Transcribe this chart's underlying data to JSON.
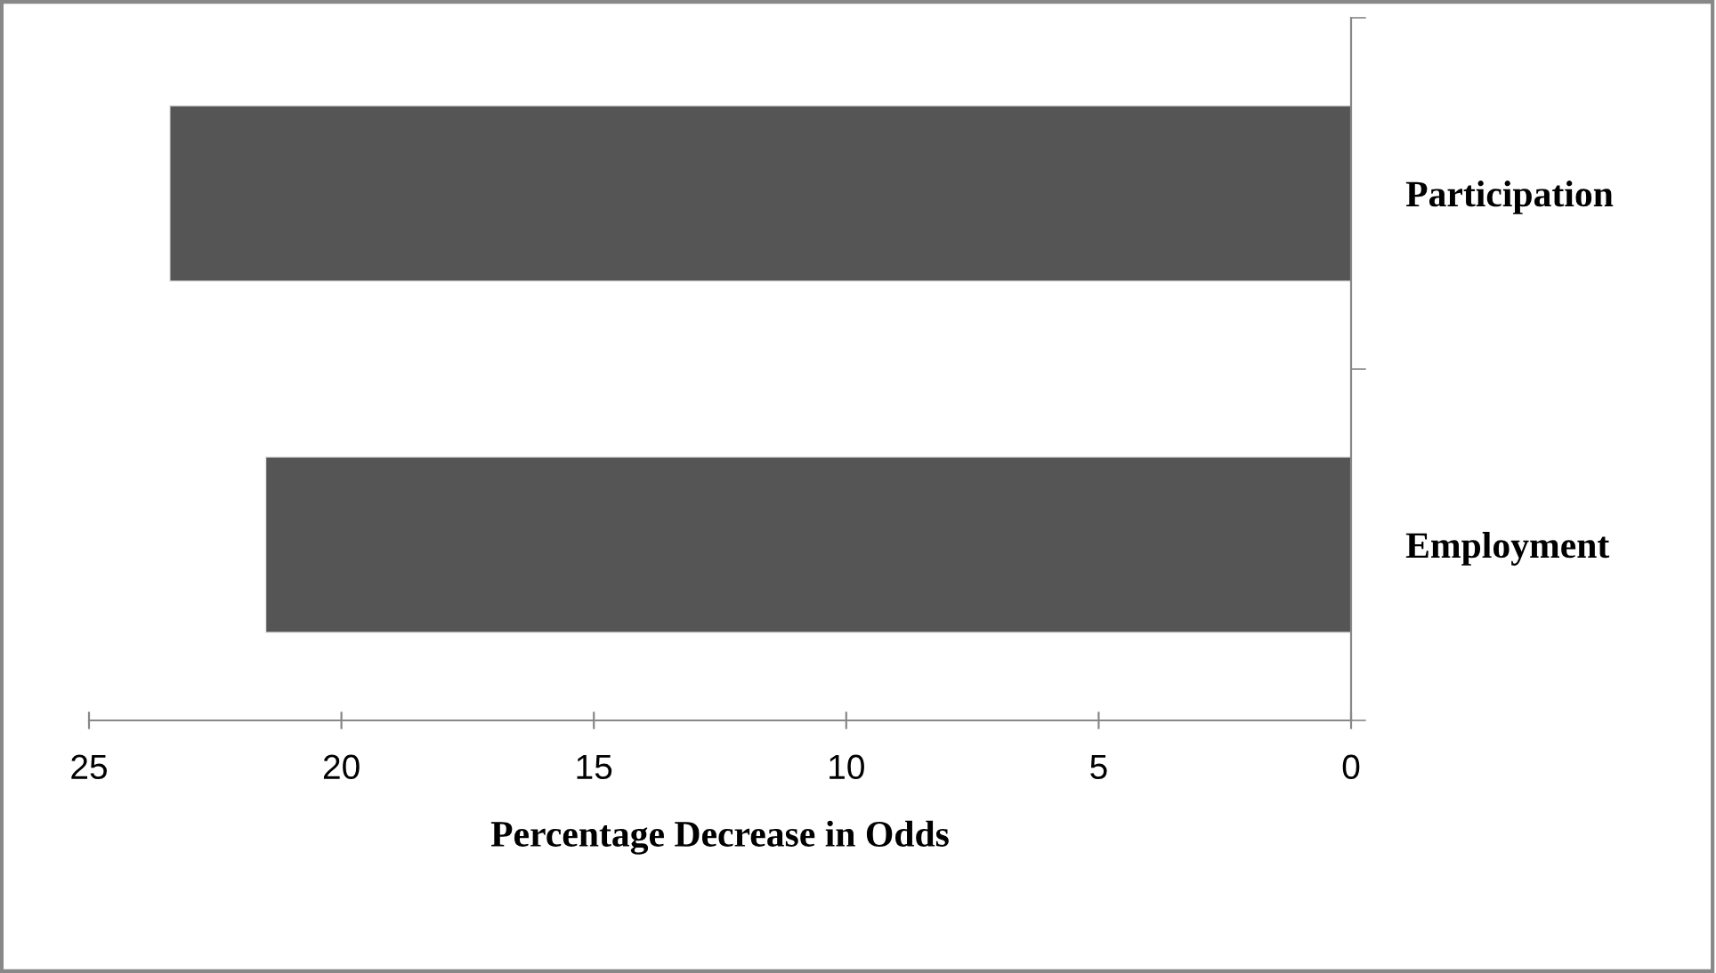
{
  "chart_data": {
    "type": "bar",
    "orientation": "horizontal",
    "xlabel": "Percentage Decrease in Odds",
    "categories": [
      "Participation",
      "Employment"
    ],
    "values": [
      23.4,
      21.5
    ],
    "color": "#555555",
    "xlim": [
      25,
      0
    ],
    "xticks": [
      25,
      20,
      15,
      10,
      5,
      0
    ],
    "grid": false,
    "legend": false
  }
}
